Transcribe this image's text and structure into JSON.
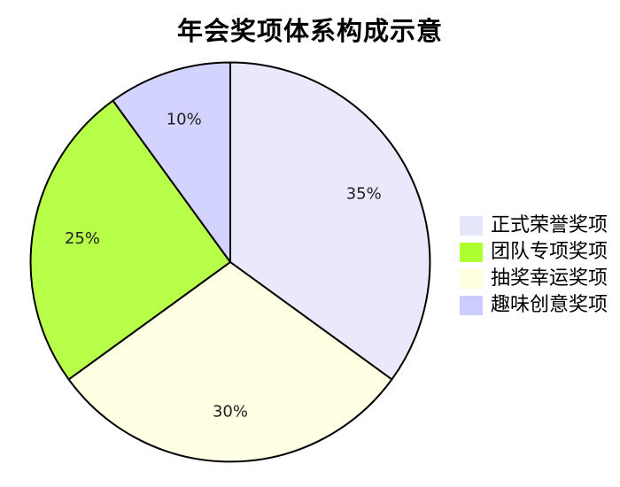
{
  "chart_data": {
    "type": "pie",
    "title": "年会奖项体系构成示意",
    "start_angle_deg": 90,
    "direction": "clockwise",
    "slices": [
      {
        "label": "正式荣誉奖项",
        "value": 35,
        "pct_label": "35%",
        "color": "#E6E6FA"
      },
      {
        "label": "抽奖幸运奖项",
        "value": 30,
        "pct_label": "30%",
        "color": "#FFFFE0"
      },
      {
        "label": "团队专项奖项",
        "value": 25,
        "pct_label": "25%",
        "color": "#ADFF2F"
      },
      {
        "label": "趣味创意奖项",
        "value": 10,
        "pct_label": "10%",
        "color": "#CCCCFF"
      }
    ],
    "legend_order": [
      0,
      2,
      1,
      3
    ],
    "legend_position": "center-right",
    "legend_frame": false,
    "wedge_edge_color": "#000000",
    "wedge_edge_width": 2,
    "pct_distance": 0.75,
    "pct_label_color": "#1f1f1f",
    "title_color": "#000000",
    "background_color": "#ffffff"
  }
}
